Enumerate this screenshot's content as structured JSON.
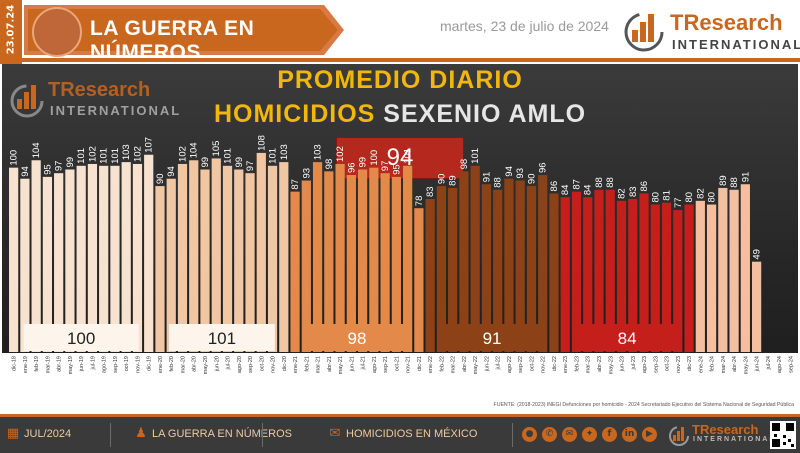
{
  "header": {
    "date_code": "23.07.24",
    "banner_title": "LA GUERRA EN NÚMEROS",
    "date_text": "martes, 23 de julio de 2024",
    "logo_tr": "TResearch",
    "logo_intl": "INTERNATIONAL"
  },
  "colors": {
    "accent": "#c9671f",
    "title_yellow": "#f2b70a",
    "avg_red": "#b4281d",
    "period1": "#f7e2cf",
    "period2": "#f1c7a3",
    "period3": "#e38a4a",
    "period4": "#8c4216",
    "period5": "#c41f1a",
    "period6": "#f3bfa0"
  },
  "chart_data": {
    "type": "bar",
    "title": "PROMEDIO DIARIO",
    "subtitle_highlight": "HOMICIDIOS",
    "subtitle_rest": "SEXENIO AMLO",
    "overall_average": "94",
    "categories": [
      "dic-18",
      "ene-19",
      "feb-19",
      "mar-19",
      "abr-19",
      "may-19",
      "jun-19",
      "jul-19",
      "ago-19",
      "sep-19",
      "oct-19",
      "nov-19",
      "dic-19",
      "ene-20",
      "feb-20",
      "mar-20",
      "abr-20",
      "may-20",
      "jun-20",
      "jul-20",
      "ago-20",
      "sep-20",
      "oct-20",
      "nov-20",
      "dic-20",
      "ene-21",
      "feb-21",
      "mar-21",
      "abr-21",
      "may-21",
      "jun-21",
      "jul-21",
      "ago-21",
      "sep-21",
      "oct-21",
      "nov-21",
      "dic-21",
      "ene-22",
      "feb-22",
      "mar-22",
      "abr-22",
      "may-22",
      "jun-22",
      "jul-22",
      "ago-22",
      "sep-22",
      "oct-22",
      "nov-22",
      "dic-22",
      "ene-23",
      "feb-23",
      "mar-23",
      "abr-23",
      "may-23",
      "jun-23",
      "jul-23",
      "ago-23",
      "sep-23",
      "oct-23",
      "nov-23",
      "dic-23",
      "ene-24",
      "feb-24",
      "mar-24",
      "abr-24",
      "may-24",
      "jun-24",
      "jul-24",
      "ago-24",
      "sep-24"
    ],
    "values": [
      100,
      94,
      104,
      95,
      97,
      99,
      101,
      102,
      101,
      101,
      103,
      102,
      107,
      90,
      94,
      102,
      104,
      99,
      105,
      101,
      99,
      97,
      108,
      101,
      103,
      87,
      93,
      103,
      98,
      102,
      96,
      99,
      100,
      97,
      95,
      101,
      78,
      83,
      90,
      89,
      98,
      101,
      91,
      88,
      94,
      93,
      90,
      96,
      86,
      84,
      87,
      84,
      88,
      88,
      82,
      83,
      86,
      80,
      81,
      77,
      80,
      82,
      80,
      89,
      88,
      91,
      49,
      null,
      null,
      null
    ],
    "bar_labels": [
      "100",
      "94",
      "104",
      "95",
      "97",
      "99",
      "101",
      "102",
      "101",
      "101",
      "103",
      "102",
      "107",
      "90",
      "94",
      "102",
      "104",
      "99",
      "105",
      "101",
      "99",
      "97",
      "108",
      "101",
      "103",
      "87",
      "93",
      "103",
      "98",
      "102",
      "96",
      "99",
      "100",
      "97",
      "95",
      "101",
      "78",
      "83",
      "90",
      "89",
      "98",
      "101",
      "91",
      "88",
      "94",
      "93",
      "90",
      "96",
      "86",
      "84",
      "87",
      "84",
      "88",
      "88",
      "82",
      "83",
      "86",
      "80",
      "81",
      "77",
      "80",
      "82",
      "80",
      "89",
      "88",
      "91",
      "49",
      "",
      "",
      ""
    ],
    "periods": [
      {
        "label": "100",
        "start": 0,
        "end": 12,
        "color": "#f7e2cf"
      },
      {
        "label": "101",
        "start": 13,
        "end": 24,
        "color": "#f1c7a3"
      },
      {
        "label": "98",
        "start": 25,
        "end": 36,
        "color": "#e38a4a"
      },
      {
        "label": "91",
        "start": 37,
        "end": 48,
        "color": "#8c4216"
      },
      {
        "label": "84",
        "start": 49,
        "end": 60,
        "color": "#c41f1a"
      },
      {
        "label": "",
        "start": 61,
        "end": 69,
        "color": "#f3bfa0"
      }
    ],
    "ylim": [
      0,
      115
    ],
    "grid": false
  },
  "source": "FUENTE: (2018-2023) INEGI Defunciones por homicidio - 2024 Secretariado Ejecutivo del Sistema Nacional de Seguridad Pública",
  "footer": {
    "month": "JUL/2024",
    "section": "LA GUERRA EN NÚMEROS",
    "topic": "HOMICIDIOS EN MÉXICO",
    "logo_tr": "TResearch",
    "logo_intl": "INTERNATIONAL",
    "icons": [
      "calendar-icon",
      "map-person-icon",
      "chat-icon"
    ],
    "social_icons": [
      "globe-icon",
      "phone-icon",
      "mail-icon",
      "twitter-icon",
      "facebook-icon",
      "linkedin-icon",
      "youtube-icon"
    ]
  }
}
